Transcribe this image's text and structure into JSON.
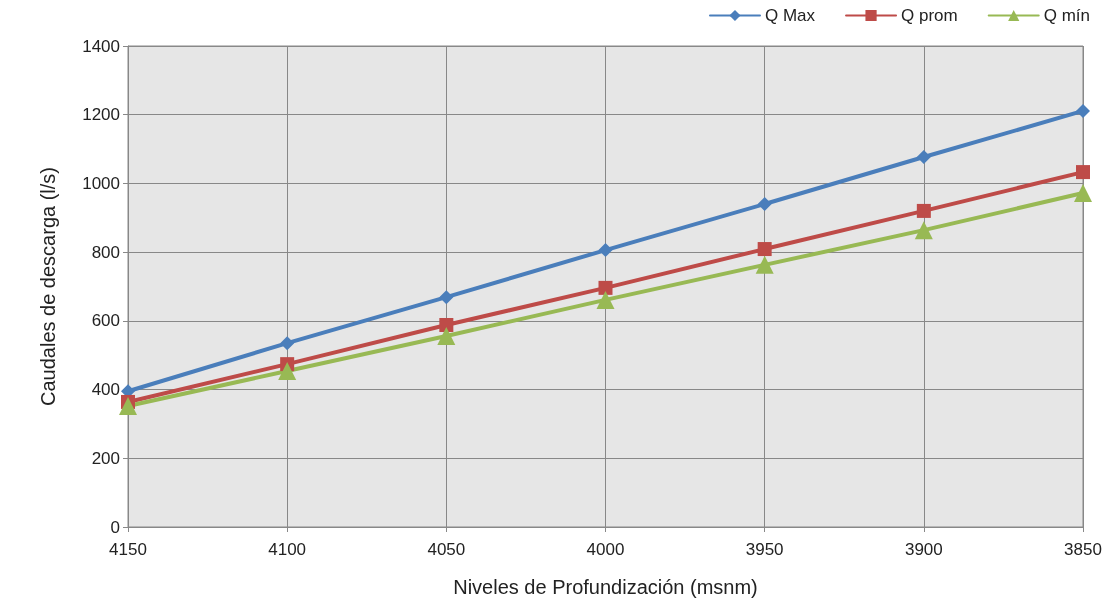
{
  "chart_data": {
    "type": "line",
    "xlabel": "Niveles de Profundización (msnm)",
    "ylabel": "Caudales de descarga (l/s)",
    "x": [
      4150,
      4100,
      4050,
      4000,
      3950,
      3900,
      3850
    ],
    "xlim": [
      4150,
      3850
    ],
    "xticks": [
      4150,
      4100,
      4050,
      4000,
      3950,
      3900,
      3850
    ],
    "ylim": [
      0,
      1400
    ],
    "yticks": [
      0,
      200,
      400,
      600,
      800,
      1000,
      1200,
      1400
    ],
    "grid": true,
    "legend": "top right",
    "line_style": "solid",
    "series": [
      {
        "name": "Q Max",
        "color": "#4a7ebb",
        "marker": "diamond",
        "values": [
          395,
          535,
          669,
          806,
          940,
          1077,
          1211
        ]
      },
      {
        "name": "Q prom",
        "color": "#be4b48",
        "marker": "square",
        "values": [
          364,
          474,
          588,
          696,
          809,
          920,
          1033
        ]
      },
      {
        "name": "Q mín",
        "color": "#98b954",
        "marker": "triangle",
        "values": [
          352,
          454,
          556,
          661,
          763,
          864,
          972
        ]
      }
    ]
  }
}
